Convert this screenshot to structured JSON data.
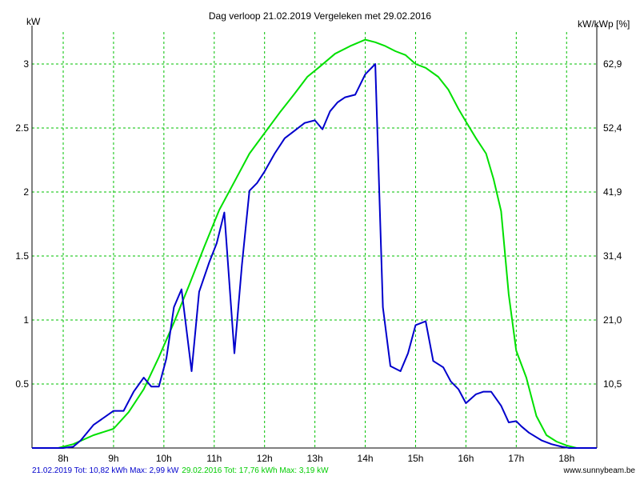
{
  "chart_data": {
    "type": "line",
    "title": "Dag  verloop 21.02.2019   Vergeleken met 29.02.2016",
    "ylabel_left": "kW",
    "ylabel_right": "kW/kWp [%]",
    "ylim": [
      0,
      3.25
    ],
    "xlim": [
      7.38,
      18.6
    ],
    "grid": true,
    "x_ticks": [
      8,
      9,
      10,
      11,
      12,
      13,
      14,
      15,
      16,
      17,
      18
    ],
    "x_tick_labels": [
      "8h",
      "9h",
      "10h",
      "11h",
      "12h",
      "13h",
      "14h",
      "15h",
      "16h",
      "17h",
      "18h"
    ],
    "y_ticks_left": [
      0.5,
      1,
      1.5,
      2,
      2.5,
      3
    ],
    "y_tick_labels_left": [
      "0.5",
      "1",
      "1.5",
      "2",
      "2.5",
      "3"
    ],
    "y_ticks_right_at": [
      0.5,
      1,
      1.5,
      2,
      2.5,
      3
    ],
    "y_tick_labels_right": [
      "10,5",
      "21,0",
      "31,4",
      "41,9",
      "52,4",
      "62,9"
    ],
    "series": [
      {
        "name": "21.02.2019",
        "color": "#0000cc",
        "x": [
          7.38,
          8.0,
          8.2,
          8.35,
          8.6,
          9.0,
          9.2,
          9.4,
          9.6,
          9.75,
          9.9,
          10.05,
          10.2,
          10.35,
          10.55,
          10.7,
          10.9,
          11.05,
          11.2,
          11.4,
          11.55,
          11.7,
          11.85,
          12.0,
          12.2,
          12.4,
          12.6,
          12.8,
          13.0,
          13.15,
          13.3,
          13.45,
          13.6,
          13.8,
          14.0,
          14.2,
          14.35,
          14.5,
          14.7,
          14.85,
          15.0,
          15.2,
          15.35,
          15.55,
          15.7,
          15.85,
          16.0,
          16.2,
          16.35,
          16.5,
          16.7,
          16.85,
          17.0,
          17.1,
          17.25,
          17.5,
          17.7,
          17.9,
          18.05,
          18.2,
          18.6
        ],
        "y": [
          0,
          0,
          0.01,
          0.06,
          0.18,
          0.29,
          0.29,
          0.44,
          0.55,
          0.48,
          0.48,
          0.7,
          1.1,
          1.24,
          0.6,
          1.22,
          1.45,
          1.6,
          1.84,
          0.74,
          1.43,
          2.01,
          2.07,
          2.16,
          2.3,
          2.42,
          2.48,
          2.54,
          2.56,
          2.49,
          2.63,
          2.7,
          2.74,
          2.76,
          2.92,
          3.0,
          1.1,
          0.64,
          0.6,
          0.74,
          0.96,
          0.99,
          0.68,
          0.63,
          0.52,
          0.46,
          0.35,
          0.42,
          0.44,
          0.44,
          0.33,
          0.2,
          0.21,
          0.17,
          0.12,
          0.06,
          0.03,
          0.01,
          0,
          0,
          0
        ]
      },
      {
        "name": "29.02.2016",
        "color": "#00e000",
        "x": [
          7.38,
          7.9,
          8.2,
          8.6,
          9.0,
          9.3,
          9.6,
          9.9,
          10.2,
          10.5,
          10.8,
          11.1,
          11.4,
          11.7,
          12.0,
          12.3,
          12.6,
          12.85,
          13.1,
          13.4,
          13.7,
          14.0,
          14.2,
          14.4,
          14.6,
          14.8,
          15.0,
          15.2,
          15.45,
          15.65,
          15.85,
          16.0,
          16.2,
          16.4,
          16.55,
          16.7,
          16.85,
          17.0,
          17.2,
          17.4,
          17.6,
          17.8,
          18.0,
          18.2,
          18.6
        ],
        "y": [
          0,
          0,
          0.03,
          0.1,
          0.15,
          0.28,
          0.46,
          0.71,
          0.98,
          1.27,
          1.57,
          1.86,
          2.08,
          2.3,
          2.46,
          2.62,
          2.77,
          2.9,
          2.98,
          3.08,
          3.14,
          3.19,
          3.17,
          3.14,
          3.1,
          3.07,
          3.0,
          2.97,
          2.9,
          2.8,
          2.65,
          2.55,
          2.42,
          2.3,
          2.1,
          1.85,
          1.2,
          0.76,
          0.55,
          0.25,
          0.1,
          0.05,
          0.02,
          0,
          0
        ]
      }
    ]
  },
  "footer": {
    "blue_summary": "21.02.2019 Tot: 10,82 kWh Max: 2,99 kW",
    "green_summary": "29.02.2016 Tot: 17,76 kWh Max: 3,19 kW",
    "brand": "www.sunnybeam.be"
  }
}
